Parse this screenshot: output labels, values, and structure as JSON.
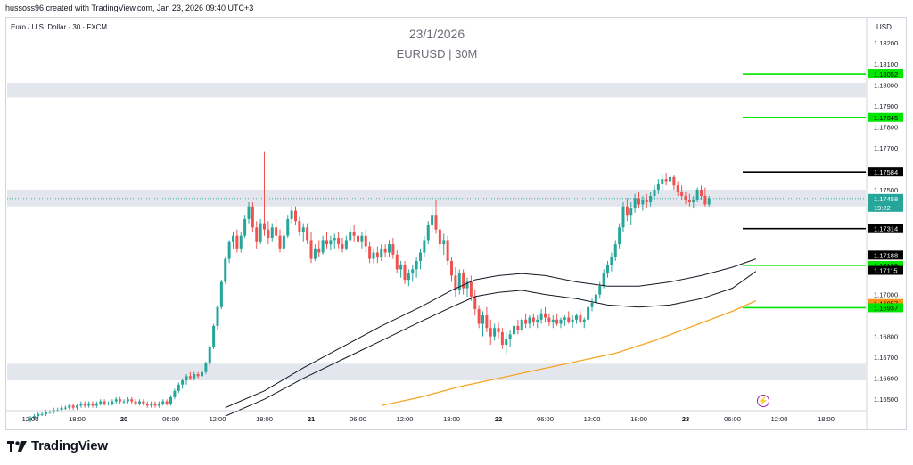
{
  "attribution": "hussoss96 created with TradingView.com, Jan 23, 2026 09:40 UTC+3",
  "symbol": "Euro / U.S. Dollar · 30 · FXCM",
  "currency": "USD",
  "logo": "TradingView",
  "colors": {
    "up": "#26a69a",
    "down": "#ef5350",
    "green_level": "#00e600",
    "black_level": "#000000",
    "orange_level": "#f7931a",
    "zone": "#e0e3eb",
    "ma_orange": "#f5a623",
    "ma_black": "#131722"
  },
  "chart_data": {
    "type": "candlestick",
    "title": "EURUSD | 30M",
    "subtitle": "23/1/2026",
    "ylim": [
      1.1645,
      1.1832
    ],
    "y_ticks": [
      "1.18200",
      "1.18100",
      "1.18000",
      "1.17900",
      "1.17800",
      "1.17700",
      "1.17500",
      "1.17000",
      "1.16800",
      "1.16700",
      "1.16600",
      "1.16500"
    ],
    "x_ticks": [
      {
        "label": "12:00",
        "i": 0
      },
      {
        "label": "18:00",
        "i": 12
      },
      {
        "label": "20",
        "i": 24
      },
      {
        "label": "06:00",
        "i": 36
      },
      {
        "label": "12:00",
        "i": 48
      },
      {
        "label": "18:00",
        "i": 60
      },
      {
        "label": "21",
        "i": 72
      },
      {
        "label": "06:00",
        "i": 84
      },
      {
        "label": "12:00",
        "i": 96
      },
      {
        "label": "18:00",
        "i": 108
      },
      {
        "label": "22",
        "i": 120
      },
      {
        "label": "06:00",
        "i": 132
      },
      {
        "label": "12:00",
        "i": 144
      },
      {
        "label": "18:00",
        "i": 156
      },
      {
        "label": "23",
        "i": 168
      },
      {
        "label": "06:00",
        "i": 180
      },
      {
        "label": "12:00",
        "i": 192
      },
      {
        "label": "18:00",
        "i": 204
      }
    ],
    "zones": [
      {
        "from": 1.1794,
        "to": 1.1801
      },
      {
        "from": 1.1742,
        "to": 1.175
      },
      {
        "from": 1.1659,
        "to": 1.1667
      }
    ],
    "levels": [
      {
        "value": 1.18052,
        "label": "1.18052",
        "color": "green",
        "line": true
      },
      {
        "value": 1.17845,
        "label": "1.17845",
        "color": "green",
        "line": true
      },
      {
        "value": 1.17584,
        "label": "1.17584",
        "color": "black",
        "line": true
      },
      {
        "value": 1.17458,
        "label": "1.17458",
        "sub": "19:22",
        "color": "teal",
        "line": false
      },
      {
        "value": 1.17314,
        "label": "1.17314",
        "color": "black",
        "line": true
      },
      {
        "value": 1.17188,
        "label": "1.17188",
        "color": "black",
        "line": false
      },
      {
        "value": 1.17139,
        "label": "1.17139",
        "color": "green",
        "line": true
      },
      {
        "value": 1.17115,
        "label": "1.17115",
        "color": "black",
        "line": false
      },
      {
        "value": 1.16957,
        "label": "1.16957",
        "color": "orange",
        "line": false
      },
      {
        "value": 1.16937,
        "label": "1.16937",
        "color": "green",
        "line": true
      }
    ],
    "candles": [
      [
        1.164,
        1.1642,
        1.1639,
        1.1641
      ],
      [
        1.1641,
        1.1643,
        1.164,
        1.1642
      ],
      [
        1.1642,
        1.1644,
        1.1641,
        1.1643
      ],
      [
        1.1643,
        1.1644,
        1.1642,
        1.1643
      ],
      [
        1.1643,
        1.1645,
        1.1642,
        1.1644
      ],
      [
        1.1644,
        1.1645,
        1.1643,
        1.1644
      ],
      [
        1.1644,
        1.1646,
        1.1643,
        1.1645
      ],
      [
        1.1645,
        1.1646,
        1.1644,
        1.1645
      ],
      [
        1.1645,
        1.1647,
        1.1644,
        1.1646
      ],
      [
        1.1646,
        1.1647,
        1.1645,
        1.1646
      ],
      [
        1.1646,
        1.1648,
        1.1645,
        1.1647
      ],
      [
        1.1647,
        1.1648,
        1.1645,
        1.1646
      ],
      [
        1.1646,
        1.1648,
        1.1645,
        1.1647
      ],
      [
        1.1647,
        1.1649,
        1.1646,
        1.1648
      ],
      [
        1.1648,
        1.1649,
        1.1646,
        1.1647
      ],
      [
        1.1647,
        1.1649,
        1.1646,
        1.1648
      ],
      [
        1.1648,
        1.1649,
        1.1646,
        1.1647
      ],
      [
        1.1647,
        1.1649,
        1.1646,
        1.1648
      ],
      [
        1.1648,
        1.165,
        1.1647,
        1.1649
      ],
      [
        1.1649,
        1.165,
        1.1647,
        1.1648
      ],
      [
        1.1648,
        1.1649,
        1.1647,
        1.1648
      ],
      [
        1.1648,
        1.165,
        1.1647,
        1.1649
      ],
      [
        1.1649,
        1.1651,
        1.1648,
        1.165
      ],
      [
        1.165,
        1.1651,
        1.1648,
        1.1649
      ],
      [
        1.1649,
        1.165,
        1.1648,
        1.1649
      ],
      [
        1.1649,
        1.1651,
        1.1648,
        1.165
      ],
      [
        1.165,
        1.1651,
        1.1648,
        1.1649
      ],
      [
        1.1649,
        1.165,
        1.1647,
        1.1648
      ],
      [
        1.1648,
        1.165,
        1.1647,
        1.1649
      ],
      [
        1.1649,
        1.165,
        1.1647,
        1.1648
      ],
      [
        1.1648,
        1.1649,
        1.1646,
        1.1647
      ],
      [
        1.1647,
        1.1649,
        1.1646,
        1.1648
      ],
      [
        1.1648,
        1.1649,
        1.1646,
        1.1647
      ],
      [
        1.1647,
        1.1649,
        1.1646,
        1.1648
      ],
      [
        1.1648,
        1.165,
        1.1647,
        1.1649
      ],
      [
        1.1649,
        1.165,
        1.1647,
        1.1648
      ],
      [
        1.1648,
        1.1652,
        1.1647,
        1.1651
      ],
      [
        1.1651,
        1.1655,
        1.165,
        1.1654
      ],
      [
        1.1654,
        1.1658,
        1.1653,
        1.1657
      ],
      [
        1.1657,
        1.166,
        1.1655,
        1.1659
      ],
      [
        1.1659,
        1.1662,
        1.1657,
        1.1661
      ],
      [
        1.1661,
        1.1663,
        1.1659,
        1.166
      ],
      [
        1.166,
        1.1663,
        1.1659,
        1.1662
      ],
      [
        1.1662,
        1.1663,
        1.166,
        1.1661
      ],
      [
        1.1661,
        1.1664,
        1.166,
        1.1663
      ],
      [
        1.1663,
        1.1668,
        1.1662,
        1.1667
      ],
      [
        1.1667,
        1.1676,
        1.1666,
        1.1675
      ],
      [
        1.1675,
        1.1686,
        1.1674,
        1.1685
      ],
      [
        1.1685,
        1.1695,
        1.1683,
        1.1694
      ],
      [
        1.1694,
        1.1707,
        1.1693,
        1.1706
      ],
      [
        1.1706,
        1.1718,
        1.1705,
        1.1717
      ],
      [
        1.1717,
        1.1726,
        1.1715,
        1.1725
      ],
      [
        1.1725,
        1.173,
        1.1722,
        1.1728
      ],
      [
        1.1728,
        1.1731,
        1.172,
        1.1722
      ],
      [
        1.1722,
        1.173,
        1.172,
        1.1728
      ],
      [
        1.1728,
        1.1738,
        1.1727,
        1.1736
      ],
      [
        1.1736,
        1.1744,
        1.1734,
        1.1742
      ],
      [
        1.1742,
        1.1744,
        1.173,
        1.1732
      ],
      [
        1.1732,
        1.1735,
        1.1722,
        1.1725
      ],
      [
        1.1725,
        1.1736,
        1.1724,
        1.1734
      ],
      [
        1.1734,
        1.1768,
        1.1728,
        1.1731
      ],
      [
        1.1731,
        1.1735,
        1.1724,
        1.1727
      ],
      [
        1.1727,
        1.1734,
        1.1725,
        1.1732
      ],
      [
        1.1732,
        1.1736,
        1.1726,
        1.1728
      ],
      [
        1.1728,
        1.1731,
        1.172,
        1.1722
      ],
      [
        1.1722,
        1.173,
        1.172,
        1.1728
      ],
      [
        1.1728,
        1.1738,
        1.1727,
        1.1736
      ],
      [
        1.1736,
        1.1742,
        1.1734,
        1.174
      ],
      [
        1.174,
        1.1742,
        1.1733,
        1.1735
      ],
      [
        1.1735,
        1.1737,
        1.1728,
        1.173
      ],
      [
        1.173,
        1.1734,
        1.1725,
        1.1732
      ],
      [
        1.1732,
        1.1734,
        1.1724,
        1.1726
      ],
      [
        1.1726,
        1.173,
        1.1715,
        1.1717
      ],
      [
        1.1717,
        1.1724,
        1.1716,
        1.1722
      ],
      [
        1.1722,
        1.1726,
        1.1718,
        1.172
      ],
      [
        1.172,
        1.1728,
        1.1719,
        1.1726
      ],
      [
        1.1726,
        1.173,
        1.1722,
        1.1724
      ],
      [
        1.1724,
        1.1728,
        1.1721,
        1.1726
      ],
      [
        1.1726,
        1.1729,
        1.1722,
        1.1727
      ],
      [
        1.1727,
        1.173,
        1.1722,
        1.1724
      ],
      [
        1.1724,
        1.1727,
        1.172,
        1.1722
      ],
      [
        1.1722,
        1.1728,
        1.1721,
        1.1726
      ],
      [
        1.1726,
        1.1732,
        1.1725,
        1.173
      ],
      [
        1.173,
        1.1733,
        1.1725,
        1.1728
      ],
      [
        1.1728,
        1.1731,
        1.1722,
        1.1725
      ],
      [
        1.1725,
        1.173,
        1.1722,
        1.1728
      ],
      [
        1.1728,
        1.1731,
        1.172,
        1.1723
      ],
      [
        1.1723,
        1.1725,
        1.1715,
        1.1717
      ],
      [
        1.1717,
        1.1722,
        1.1715,
        1.172
      ],
      [
        1.172,
        1.1723,
        1.1715,
        1.1718
      ],
      [
        1.1718,
        1.1724,
        1.1716,
        1.1722
      ],
      [
        1.1722,
        1.1724,
        1.1718,
        1.172
      ],
      [
        1.172,
        1.1726,
        1.1718,
        1.1724
      ],
      [
        1.1724,
        1.1727,
        1.1717,
        1.1719
      ],
      [
        1.1719,
        1.1721,
        1.171,
        1.1712
      ],
      [
        1.1712,
        1.1716,
        1.1708,
        1.1714
      ],
      [
        1.1714,
        1.1716,
        1.1705,
        1.1707
      ],
      [
        1.1707,
        1.1712,
        1.1704,
        1.171
      ],
      [
        1.171,
        1.1714,
        1.1706,
        1.1712
      ],
      [
        1.1712,
        1.1718,
        1.1708,
        1.1716
      ],
      [
        1.1716,
        1.1722,
        1.1712,
        1.172
      ],
      [
        1.172,
        1.1728,
        1.1718,
        1.1726
      ],
      [
        1.1726,
        1.1735,
        1.1724,
        1.1733
      ],
      [
        1.1733,
        1.1742,
        1.173,
        1.1738
      ],
      [
        1.1738,
        1.1745,
        1.1729,
        1.1731
      ],
      [
        1.1731,
        1.1734,
        1.1721,
        1.1724
      ],
      [
        1.1724,
        1.1729,
        1.1719,
        1.1726
      ],
      [
        1.1726,
        1.1728,
        1.1714,
        1.1716
      ],
      [
        1.1716,
        1.1718,
        1.1706,
        1.1709
      ],
      [
        1.1709,
        1.1713,
        1.1699,
        1.1702
      ],
      [
        1.1702,
        1.1712,
        1.17,
        1.171
      ],
      [
        1.171,
        1.1712,
        1.17,
        1.1703
      ],
      [
        1.1703,
        1.1708,
        1.1699,
        1.1706
      ],
      [
        1.1706,
        1.1709,
        1.1697,
        1.1699
      ],
      [
        1.1699,
        1.1702,
        1.169,
        1.1693
      ],
      [
        1.1693,
        1.1695,
        1.1684,
        1.1686
      ],
      [
        1.1686,
        1.1692,
        1.168,
        1.169
      ],
      [
        1.169,
        1.1694,
        1.1682,
        1.1684
      ],
      [
        1.1684,
        1.1688,
        1.1676,
        1.168
      ],
      [
        1.168,
        1.1686,
        1.1678,
        1.1684
      ],
      [
        1.1684,
        1.1687,
        1.1679,
        1.1682
      ],
      [
        1.1682,
        1.1684,
        1.1674,
        1.1676
      ],
      [
        1.1676,
        1.1682,
        1.1671,
        1.1679
      ],
      [
        1.1679,
        1.1683,
        1.1675,
        1.1681
      ],
      [
        1.1681,
        1.1686,
        1.168,
        1.1685
      ],
      [
        1.1685,
        1.1688,
        1.1681,
        1.1683
      ],
      [
        1.1683,
        1.1689,
        1.1682,
        1.1688
      ],
      [
        1.1688,
        1.1691,
        1.1684,
        1.1686
      ],
      [
        1.1686,
        1.169,
        1.1684,
        1.1689
      ],
      [
        1.1689,
        1.1691,
        1.1685,
        1.1687
      ],
      [
        1.1687,
        1.169,
        1.1684,
        1.1688
      ],
      [
        1.1688,
        1.1693,
        1.1686,
        1.1691
      ],
      [
        1.1691,
        1.1694,
        1.1687,
        1.1689
      ],
      [
        1.1689,
        1.1691,
        1.1685,
        1.1687
      ],
      [
        1.1687,
        1.169,
        1.1684,
        1.1688
      ],
      [
        1.1688,
        1.1691,
        1.1685,
        1.1686
      ],
      [
        1.1686,
        1.1689,
        1.1684,
        1.1688
      ],
      [
        1.1688,
        1.169,
        1.1685,
        1.1689
      ],
      [
        1.1689,
        1.1692,
        1.1686,
        1.1687
      ],
      [
        1.1687,
        1.169,
        1.1684,
        1.1688
      ],
      [
        1.1688,
        1.1691,
        1.1686,
        1.169
      ],
      [
        1.169,
        1.1692,
        1.1686,
        1.1687
      ],
      [
        1.1687,
        1.1689,
        1.1684,
        1.1688
      ],
      [
        1.1688,
        1.1695,
        1.1687,
        1.1694
      ],
      [
        1.1694,
        1.1698,
        1.1692,
        1.1696
      ],
      [
        1.1696,
        1.1702,
        1.1695,
        1.17
      ],
      [
        1.17,
        1.1706,
        1.1698,
        1.1704
      ],
      [
        1.1704,
        1.1712,
        1.1703,
        1.171
      ],
      [
        1.171,
        1.1716,
        1.1708,
        1.1714
      ],
      [
        1.1714,
        1.172,
        1.1711,
        1.1718
      ],
      [
        1.1718,
        1.1726,
        1.1716,
        1.1724
      ],
      [
        1.1724,
        1.1734,
        1.1722,
        1.1732
      ],
      [
        1.1732,
        1.1744,
        1.173,
        1.1742
      ],
      [
        1.1742,
        1.1746,
        1.1735,
        1.1738
      ],
      [
        1.1738,
        1.1744,
        1.1733,
        1.1741
      ],
      [
        1.1741,
        1.1748,
        1.1739,
        1.1746
      ],
      [
        1.1746,
        1.1749,
        1.1741,
        1.1743
      ],
      [
        1.1743,
        1.1747,
        1.174,
        1.1745
      ],
      [
        1.1745,
        1.1748,
        1.1741,
        1.1744
      ],
      [
        1.1744,
        1.1749,
        1.1742,
        1.1747
      ],
      [
        1.1747,
        1.1752,
        1.1745,
        1.175
      ],
      [
        1.175,
        1.1755,
        1.1748,
        1.1753
      ],
      [
        1.1753,
        1.1757,
        1.175,
        1.1755
      ],
      [
        1.1755,
        1.1758,
        1.1752,
        1.1754
      ],
      [
        1.1754,
        1.1758,
        1.1752,
        1.1756
      ],
      [
        1.1756,
        1.1757,
        1.175,
        1.1752
      ],
      [
        1.1752,
        1.1754,
        1.1747,
        1.1749
      ],
      [
        1.1749,
        1.1752,
        1.1745,
        1.1747
      ],
      [
        1.1747,
        1.1749,
        1.1743,
        1.1745
      ],
      [
        1.1745,
        1.1748,
        1.1742,
        1.1744
      ],
      [
        1.1744,
        1.1747,
        1.1741,
        1.1745
      ],
      [
        1.1745,
        1.1751,
        1.1744,
        1.175
      ],
      [
        1.175,
        1.1752,
        1.1745,
        1.1747
      ],
      [
        1.1747,
        1.1751,
        1.1742,
        1.1743
      ],
      [
        1.1743,
        1.1747,
        1.1742,
        1.1746
      ]
    ],
    "ma_upper": [
      [
        50,
        1.1646
      ],
      [
        60,
        1.1654
      ],
      [
        70,
        1.1665
      ],
      [
        80,
        1.1675
      ],
      [
        90,
        1.1685
      ],
      [
        100,
        1.1694
      ],
      [
        108,
        1.1702
      ],
      [
        114,
        1.1707
      ],
      [
        120,
        1.1709
      ],
      [
        126,
        1.171
      ],
      [
        132,
        1.1709
      ],
      [
        140,
        1.1706
      ],
      [
        148,
        1.1704
      ],
      [
        156,
        1.1704
      ],
      [
        164,
        1.1706
      ],
      [
        172,
        1.1709
      ],
      [
        180,
        1.1713
      ],
      [
        186,
        1.1717
      ]
    ],
    "ma_lower": [
      [
        50,
        1.1642
      ],
      [
        60,
        1.165
      ],
      [
        70,
        1.166
      ],
      [
        80,
        1.1669
      ],
      [
        90,
        1.1678
      ],
      [
        100,
        1.1687
      ],
      [
        108,
        1.1694
      ],
      [
        114,
        1.1699
      ],
      [
        120,
        1.1701
      ],
      [
        126,
        1.1702
      ],
      [
        132,
        1.17
      ],
      [
        140,
        1.1698
      ],
      [
        148,
        1.1695
      ],
      [
        156,
        1.1694
      ],
      [
        164,
        1.1695
      ],
      [
        172,
        1.1698
      ],
      [
        180,
        1.1703
      ],
      [
        186,
        1.1711
      ]
    ],
    "ma_slow": [
      [
        90,
        1.1647
      ],
      [
        100,
        1.1651
      ],
      [
        110,
        1.1656
      ],
      [
        120,
        1.166
      ],
      [
        130,
        1.1664
      ],
      [
        140,
        1.1668
      ],
      [
        150,
        1.1672
      ],
      [
        160,
        1.1678
      ],
      [
        170,
        1.1685
      ],
      [
        180,
        1.1692
      ],
      [
        186,
        1.1697
      ]
    ]
  }
}
